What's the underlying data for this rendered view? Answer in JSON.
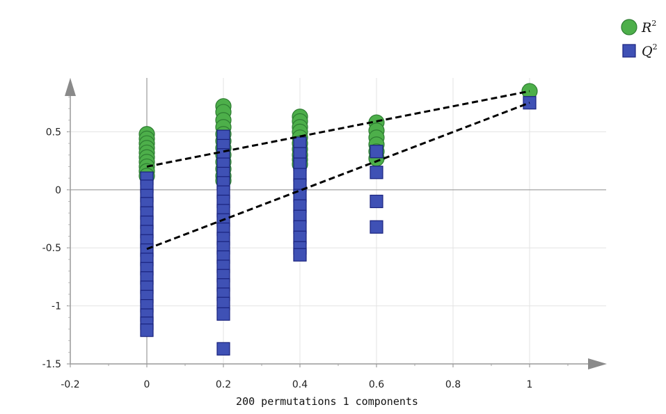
{
  "chart_data": {
    "type": "scatter",
    "title": "",
    "xlabel": "200 permutations 1 components",
    "ylabel": "",
    "xlim": [
      -0.2,
      1.2
    ],
    "ylim": [
      -1.5,
      1.0
    ],
    "x_ticks": [
      -0.2,
      0,
      0.2,
      0.4,
      0.6,
      0.8,
      1
    ],
    "x_tick_labels": [
      "-0.2",
      "0",
      "0.2",
      "0.4",
      "0.6",
      "0.8",
      "1"
    ],
    "y_ticks": [
      -1.5,
      -1,
      -0.5,
      0,
      0.5
    ],
    "y_tick_labels": [
      "-1.5",
      "-1",
      "-0.5",
      "0",
      "0.5"
    ],
    "grid": true,
    "legend_position": "top-right",
    "series": [
      {
        "name": "R",
        "superscript": "2",
        "marker": "circle",
        "color": "#4daf4a",
        "edge_color": "#2e7d32",
        "points": [
          {
            "x": 0,
            "y": 0.48
          },
          {
            "x": 0,
            "y": 0.44
          },
          {
            "x": 0,
            "y": 0.4
          },
          {
            "x": 0,
            "y": 0.36
          },
          {
            "x": 0,
            "y": 0.32
          },
          {
            "x": 0,
            "y": 0.28
          },
          {
            "x": 0,
            "y": 0.24
          },
          {
            "x": 0,
            "y": 0.2
          },
          {
            "x": 0,
            "y": 0.16
          },
          {
            "x": 0,
            "y": 0.12
          },
          {
            "x": 0.2,
            "y": 0.72
          },
          {
            "x": 0.2,
            "y": 0.67
          },
          {
            "x": 0.2,
            "y": 0.6
          },
          {
            "x": 0.2,
            "y": 0.54
          },
          {
            "x": 0.2,
            "y": 0.48
          },
          {
            "x": 0.2,
            "y": 0.42
          },
          {
            "x": 0.2,
            "y": 0.36
          },
          {
            "x": 0.2,
            "y": 0.3
          },
          {
            "x": 0.2,
            "y": 0.24
          },
          {
            "x": 0.2,
            "y": 0.18
          },
          {
            "x": 0.2,
            "y": 0.12
          },
          {
            "x": 0.2,
            "y": 0.08
          },
          {
            "x": 0.4,
            "y": 0.63
          },
          {
            "x": 0.4,
            "y": 0.59
          },
          {
            "x": 0.4,
            "y": 0.54
          },
          {
            "x": 0.4,
            "y": 0.5
          },
          {
            "x": 0.4,
            "y": 0.45
          },
          {
            "x": 0.4,
            "y": 0.4
          },
          {
            "x": 0.4,
            "y": 0.35
          },
          {
            "x": 0.4,
            "y": 0.3
          },
          {
            "x": 0.4,
            "y": 0.26
          },
          {
            "x": 0.4,
            "y": 0.22
          },
          {
            "x": 0.6,
            "y": 0.58
          },
          {
            "x": 0.6,
            "y": 0.51
          },
          {
            "x": 0.6,
            "y": 0.45
          },
          {
            "x": 0.6,
            "y": 0.39
          },
          {
            "x": 0.6,
            "y": 0.33
          },
          {
            "x": 0.6,
            "y": 0.27
          },
          {
            "x": 1,
            "y": 0.85
          }
        ]
      },
      {
        "name": "Q",
        "superscript": "2",
        "marker": "square",
        "color": "#3f51b5",
        "edge_color": "#1a237e",
        "points": [
          {
            "x": 0,
            "y": 0.1
          },
          {
            "x": 0,
            "y": 0.03
          },
          {
            "x": 0,
            "y": -0.05
          },
          {
            "x": 0,
            "y": -0.12
          },
          {
            "x": 0,
            "y": -0.2
          },
          {
            "x": 0,
            "y": -0.28
          },
          {
            "x": 0,
            "y": -0.36
          },
          {
            "x": 0,
            "y": -0.44
          },
          {
            "x": 0,
            "y": -0.52
          },
          {
            "x": 0,
            "y": -0.6
          },
          {
            "x": 0,
            "y": -0.68
          },
          {
            "x": 0,
            "y": -0.76
          },
          {
            "x": 0,
            "y": -0.84
          },
          {
            "x": 0,
            "y": -0.92
          },
          {
            "x": 0,
            "y": -1.0
          },
          {
            "x": 0,
            "y": -1.08
          },
          {
            "x": 0,
            "y": -1.15
          },
          {
            "x": 0,
            "y": -1.21
          },
          {
            "x": 0.2,
            "y": 0.46
          },
          {
            "x": 0.2,
            "y": 0.38
          },
          {
            "x": 0.2,
            "y": 0.3
          },
          {
            "x": 0.2,
            "y": 0.22
          },
          {
            "x": 0.2,
            "y": 0.14
          },
          {
            "x": 0.2,
            "y": 0.06
          },
          {
            "x": 0.2,
            "y": -0.02
          },
          {
            "x": 0.2,
            "y": -0.1
          },
          {
            "x": 0.2,
            "y": -0.18
          },
          {
            "x": 0.2,
            "y": -0.26
          },
          {
            "x": 0.2,
            "y": -0.34
          },
          {
            "x": 0.2,
            "y": -0.42
          },
          {
            "x": 0.2,
            "y": -0.5
          },
          {
            "x": 0.2,
            "y": -0.58
          },
          {
            "x": 0.2,
            "y": -0.66
          },
          {
            "x": 0.2,
            "y": -0.74
          },
          {
            "x": 0.2,
            "y": -0.82
          },
          {
            "x": 0.2,
            "y": -0.9
          },
          {
            "x": 0.2,
            "y": -0.98
          },
          {
            "x": 0.2,
            "y": -1.07
          },
          {
            "x": 0.2,
            "y": -1.37
          },
          {
            "x": 0.4,
            "y": 0.4
          },
          {
            "x": 0.4,
            "y": 0.31
          },
          {
            "x": 0.4,
            "y": 0.22
          },
          {
            "x": 0.4,
            "y": 0.13
          },
          {
            "x": 0.4,
            "y": 0.04
          },
          {
            "x": 0.4,
            "y": -0.05
          },
          {
            "x": 0.4,
            "y": -0.14
          },
          {
            "x": 0.4,
            "y": -0.23
          },
          {
            "x": 0.4,
            "y": -0.32
          },
          {
            "x": 0.4,
            "y": -0.41
          },
          {
            "x": 0.4,
            "y": -0.5
          },
          {
            "x": 0.4,
            "y": -0.56
          },
          {
            "x": 0.6,
            "y": 0.33
          },
          {
            "x": 0.6,
            "y": 0.15
          },
          {
            "x": 0.6,
            "y": -0.1
          },
          {
            "x": 0.6,
            "y": -0.32
          },
          {
            "x": 1,
            "y": 0.75
          }
        ]
      }
    ],
    "regression_lines": [
      {
        "series": "R",
        "x": [
          0,
          1
        ],
        "y": [
          0.2,
          0.85
        ],
        "style": "dashed",
        "color": "#000000"
      },
      {
        "series": "Q",
        "x": [
          0,
          1
        ],
        "y": [
          -0.51,
          0.75
        ],
        "style": "dashed",
        "color": "#000000"
      }
    ]
  }
}
